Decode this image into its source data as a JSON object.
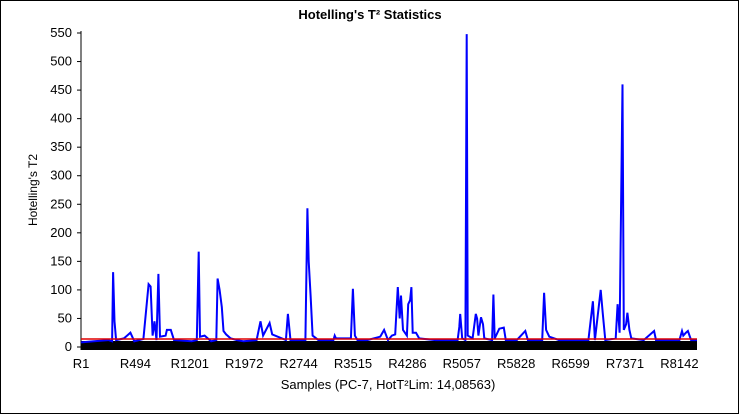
{
  "chart_data": {
    "type": "line",
    "title": "Hotelling's T² Statistics",
    "xlabel": "Samples (PC-7, HotT²Lim: 14,08563)",
    "ylabel": "Hotelling's T2",
    "ylim": [
      0,
      550
    ],
    "yticks": [
      0,
      50,
      100,
      150,
      200,
      250,
      300,
      350,
      400,
      450,
      500,
      550
    ],
    "x_tick_labels": [
      "R1",
      "R494",
      "R1201",
      "R1972",
      "R2744",
      "R3515",
      "R4286",
      "R5057",
      "R5828",
      "R6599",
      "R7371",
      "R8142"
    ],
    "sample_count": 8700,
    "colors": {
      "series": "#0000ff",
      "limit": "#e00000",
      "baseline": "#000000"
    },
    "series": [
      {
        "values_sampled_as": "[sample_index, T2]",
        "points": [
          [
            1,
            8
          ],
          [
            200,
            10
          ],
          [
            420,
            12
          ],
          [
            478,
            10
          ],
          [
            494,
            131
          ],
          [
            515,
            45
          ],
          [
            540,
            12
          ],
          [
            660,
            15
          ],
          [
            760,
            25
          ],
          [
            820,
            10
          ],
          [
            960,
            14
          ],
          [
            1040,
            110
          ],
          [
            1070,
            106
          ],
          [
            1100,
            20
          ],
          [
            1130,
            45
          ],
          [
            1160,
            12
          ],
          [
            1190,
            128
          ],
          [
            1215,
            18
          ],
          [
            1300,
            20
          ],
          [
            1320,
            30
          ],
          [
            1380,
            30
          ],
          [
            1430,
            12
          ],
          [
            1700,
            10
          ],
          [
            1780,
            12
          ],
          [
            1810,
            167
          ],
          [
            1830,
            18
          ],
          [
            1900,
            20
          ],
          [
            2000,
            10
          ],
          [
            2080,
            12
          ],
          [
            2100,
            120
          ],
          [
            2130,
            100
          ],
          [
            2165,
            70
          ],
          [
            2190,
            28
          ],
          [
            2230,
            22
          ],
          [
            2300,
            15
          ],
          [
            2400,
            12
          ],
          [
            2500,
            10
          ],
          [
            2700,
            12
          ],
          [
            2760,
            45
          ],
          [
            2800,
            20
          ],
          [
            2900,
            42
          ],
          [
            2940,
            22
          ],
          [
            3150,
            12
          ],
          [
            3180,
            58
          ],
          [
            3220,
            12
          ],
          [
            3450,
            12
          ],
          [
            3480,
            243
          ],
          [
            3500,
            150
          ],
          [
            3530,
            90
          ],
          [
            3560,
            20
          ],
          [
            3650,
            12
          ],
          [
            3880,
            12
          ],
          [
            3900,
            20
          ],
          [
            3920,
            15
          ],
          [
            4150,
            15
          ],
          [
            4180,
            102
          ],
          [
            4210,
            20
          ],
          [
            4250,
            12
          ],
          [
            4400,
            12
          ],
          [
            4600,
            18
          ],
          [
            4660,
            30
          ],
          [
            4720,
            12
          ],
          [
            4780,
            20
          ],
          [
            4830,
            22
          ],
          [
            4870,
            105
          ],
          [
            4900,
            50
          ],
          [
            4920,
            90
          ],
          [
            4950,
            30
          ],
          [
            5010,
            20
          ],
          [
            5030,
            75
          ],
          [
            5060,
            82
          ],
          [
            5080,
            105
          ],
          [
            5100,
            25
          ],
          [
            5150,
            25
          ],
          [
            5200,
            15
          ],
          [
            5450,
            12
          ],
          [
            5600,
            12
          ],
          [
            5790,
            12
          ],
          [
            5815,
            35
          ],
          [
            5830,
            58
          ],
          [
            5860,
            15
          ],
          [
            5910,
            12
          ],
          [
            5930,
            548
          ],
          [
            5945,
            20
          ],
          [
            6020,
            15
          ],
          [
            6070,
            58
          ],
          [
            6090,
            50
          ],
          [
            6110,
            20
          ],
          [
            6150,
            52
          ],
          [
            6180,
            40
          ],
          [
            6200,
            15
          ],
          [
            6320,
            12
          ],
          [
            6340,
            92
          ],
          [
            6360,
            15
          ],
          [
            6430,
            32
          ],
          [
            6500,
            34
          ],
          [
            6530,
            12
          ],
          [
            6700,
            12
          ],
          [
            6830,
            28
          ],
          [
            6870,
            12
          ],
          [
            7090,
            12
          ],
          [
            7120,
            95
          ],
          [
            7150,
            30
          ],
          [
            7200,
            18
          ],
          [
            7350,
            12
          ],
          [
            7800,
            12
          ],
          [
            7870,
            80
          ],
          [
            7900,
            12
          ],
          [
            7990,
            100
          ],
          [
            8020,
            60
          ],
          [
            8060,
            12
          ],
          [
            8220,
            15
          ],
          [
            8250,
            75
          ],
          [
            8280,
            25
          ],
          [
            8325,
            460
          ],
          [
            8345,
            30
          ],
          [
            8380,
            40
          ],
          [
            8400,
            60
          ],
          [
            8430,
            30
          ],
          [
            8460,
            15
          ],
          [
            8650,
            12
          ],
          [
            8810,
            28
          ],
          [
            8840,
            12
          ],
          [
            9200,
            12
          ],
          [
            9240,
            28
          ],
          [
            9260,
            20
          ],
          [
            9300,
            25
          ],
          [
            9330,
            28
          ],
          [
            9380,
            12
          ],
          [
            9470,
            12
          ]
        ]
      }
    ],
    "limit_line": {
      "value": 14.08563
    }
  }
}
